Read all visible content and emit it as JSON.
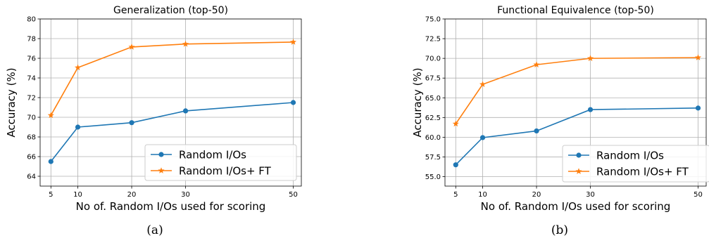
{
  "chart_data": [
    {
      "type": "line",
      "title": "Generalization (top-50)",
      "xlabel": "No of. Random I/Os used for scoring",
      "ylabel": "Accuracy (%)",
      "x": [
        5,
        10,
        20,
        30,
        50
      ],
      "x_ticks": [
        "5",
        "10",
        "20",
        "30",
        "50"
      ],
      "y_ticks": [
        "64",
        "66",
        "68",
        "70",
        "72",
        "74",
        "76",
        "78",
        "80"
      ],
      "xlim": [
        3,
        51.5
      ],
      "ylim": [
        63,
        80
      ],
      "grid": true,
      "legend_position": "lower-right",
      "series": [
        {
          "name": "Random I/Os",
          "marker": "circle",
          "color": "#1f77b4",
          "values": [
            65.5,
            69.0,
            69.45,
            70.65,
            71.5
          ]
        },
        {
          "name": "Random I/Os+ FT",
          "marker": "star",
          "color": "#ff7f0e",
          "values": [
            70.2,
            75.05,
            77.15,
            77.45,
            77.65
          ]
        }
      ],
      "caption": "(a)"
    },
    {
      "type": "line",
      "title": "Functional Equivalence (top-50)",
      "xlabel": "No of. Random I/Os used for scoring",
      "ylabel": "Accuracy (%)",
      "x": [
        5,
        10,
        20,
        30,
        50
      ],
      "x_ticks": [
        "5",
        "10",
        "20",
        "30",
        "50"
      ],
      "y_ticks": [
        "55.0",
        "57.5",
        "60.0",
        "62.5",
        "65.0",
        "67.5",
        "70.0",
        "72.5",
        "75.0"
      ],
      "xlim": [
        3,
        51.5
      ],
      "ylim": [
        53.8,
        75
      ],
      "grid": true,
      "legend_position": "lower-right",
      "series": [
        {
          "name": "Random I/Os",
          "marker": "circle",
          "color": "#1f77b4",
          "values": [
            56.5,
            59.95,
            60.8,
            63.5,
            63.7
          ]
        },
        {
          "name": "Random I/Os+ FT",
          "marker": "star",
          "color": "#ff7f0e",
          "values": [
            61.7,
            66.7,
            69.2,
            70.0,
            70.1
          ]
        }
      ],
      "caption": "(b)"
    }
  ]
}
